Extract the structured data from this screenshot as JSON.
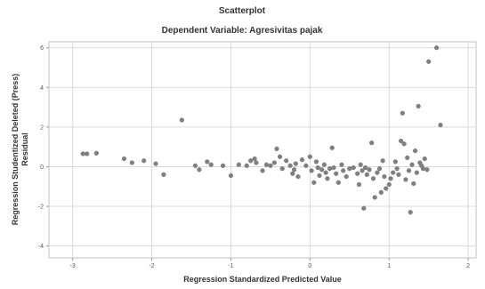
{
  "chart_data": {
    "type": "scatter",
    "title": "Scatterplot",
    "subtitle": "Dependent Variable: Agresivitas pajak",
    "xlabel": "Regression Standardized Predicted Value",
    "ylabel_line1": "Regression Studentized Deleted (Press)",
    "ylabel_line2": "Residual",
    "xlim": [
      -3.3,
      2.1
    ],
    "ylim": [
      -4.6,
      6.3
    ],
    "xticks": [
      -3,
      -2,
      -1,
      0,
      1,
      2
    ],
    "yticks": [
      -4,
      -2,
      0,
      2,
      4,
      6
    ],
    "xtick_labels": [
      "-3",
      "-2",
      "-1",
      "0",
      "1",
      "2"
    ],
    "ytick_labels": [
      "-4",
      "-2",
      "0",
      "2",
      "4",
      "6"
    ],
    "grid": true,
    "colors": {
      "point": "#808080",
      "grid": "#d9d9d9",
      "frame": "#c0c0c0"
    },
    "points": [
      [
        -2.87,
        0.65
      ],
      [
        -2.82,
        0.65
      ],
      [
        -2.7,
        0.68
      ],
      [
        -2.35,
        0.4
      ],
      [
        -2.25,
        0.2
      ],
      [
        -2.1,
        0.3
      ],
      [
        -1.95,
        0.15
      ],
      [
        -1.85,
        -0.4
      ],
      [
        -1.62,
        2.35
      ],
      [
        -1.45,
        0.05
      ],
      [
        -1.4,
        -0.15
      ],
      [
        -1.3,
        0.25
      ],
      [
        -1.25,
        0.1
      ],
      [
        -1.1,
        0.05
      ],
      [
        -1.0,
        -0.45
      ],
      [
        -0.9,
        0.1
      ],
      [
        -0.8,
        0.05
      ],
      [
        -0.75,
        0.3
      ],
      [
        -0.7,
        0.4
      ],
      [
        -0.68,
        0.2
      ],
      [
        -0.6,
        -0.2
      ],
      [
        -0.55,
        0.1
      ],
      [
        -0.5,
        0.05
      ],
      [
        -0.45,
        0.2
      ],
      [
        -0.42,
        0.9
      ],
      [
        -0.38,
        0.5
      ],
      [
        -0.35,
        -0.1
      ],
      [
        -0.3,
        0.3
      ],
      [
        -0.25,
        0.05
      ],
      [
        -0.22,
        -0.35
      ],
      [
        -0.2,
        -0.15
      ],
      [
        -0.18,
        0.15
      ],
      [
        -0.15,
        -0.5
      ],
      [
        -0.1,
        0.35
      ],
      [
        -0.05,
        0.05
      ],
      [
        0.0,
        0.5
      ],
      [
        0.02,
        -0.2
      ],
      [
        0.05,
        -0.8
      ],
      [
        0.08,
        0.25
      ],
      [
        0.1,
        -0.05
      ],
      [
        0.12,
        -0.45
      ],
      [
        0.15,
        -0.15
      ],
      [
        0.18,
        0.1
      ],
      [
        0.2,
        -0.3
      ],
      [
        0.22,
        -0.6
      ],
      [
        0.25,
        -0.1
      ],
      [
        0.28,
        0.95
      ],
      [
        0.3,
        -0.05
      ],
      [
        0.33,
        -0.35
      ],
      [
        0.36,
        -0.8
      ],
      [
        0.4,
        0.1
      ],
      [
        0.42,
        -0.2
      ],
      [
        0.46,
        -0.5
      ],
      [
        0.5,
        -0.1
      ],
      [
        0.55,
        -0.05
      ],
      [
        0.6,
        -0.35
      ],
      [
        0.62,
        -0.9
      ],
      [
        0.64,
        0.1
      ],
      [
        0.66,
        -0.2
      ],
      [
        0.68,
        -2.1
      ],
      [
        0.7,
        -0.05
      ],
      [
        0.72,
        -0.4
      ],
      [
        0.75,
        -0.15
      ],
      [
        0.78,
        1.2
      ],
      [
        0.8,
        -0.6
      ],
      [
        0.82,
        -1.55
      ],
      [
        0.85,
        -0.3
      ],
      [
        0.88,
        -0.1
      ],
      [
        0.9,
        -1.3
      ],
      [
        0.92,
        0.3
      ],
      [
        0.94,
        -0.5
      ],
      [
        0.96,
        -1.1
      ],
      [
        1.0,
        -0.9
      ],
      [
        1.02,
        -0.6
      ],
      [
        1.05,
        -0.3
      ],
      [
        1.08,
        0.25
      ],
      [
        1.1,
        -0.1
      ],
      [
        1.12,
        -0.4
      ],
      [
        1.15,
        1.3
      ],
      [
        1.17,
        2.7
      ],
      [
        1.19,
        1.15
      ],
      [
        1.21,
        -0.65
      ],
      [
        1.23,
        0.45
      ],
      [
        1.25,
        -0.2
      ],
      [
        1.27,
        -2.3
      ],
      [
        1.29,
        0.1
      ],
      [
        1.31,
        -0.85
      ],
      [
        1.33,
        0.8
      ],
      [
        1.35,
        -0.3
      ],
      [
        1.37,
        3.05
      ],
      [
        1.39,
        0.2
      ],
      [
        1.41,
        0.05
      ],
      [
        1.43,
        -0.1
      ],
      [
        1.45,
        0.4
      ],
      [
        1.48,
        -0.15
      ],
      [
        1.5,
        5.3
      ],
      [
        1.6,
        6.0
      ],
      [
        1.65,
        2.1
      ]
    ]
  }
}
